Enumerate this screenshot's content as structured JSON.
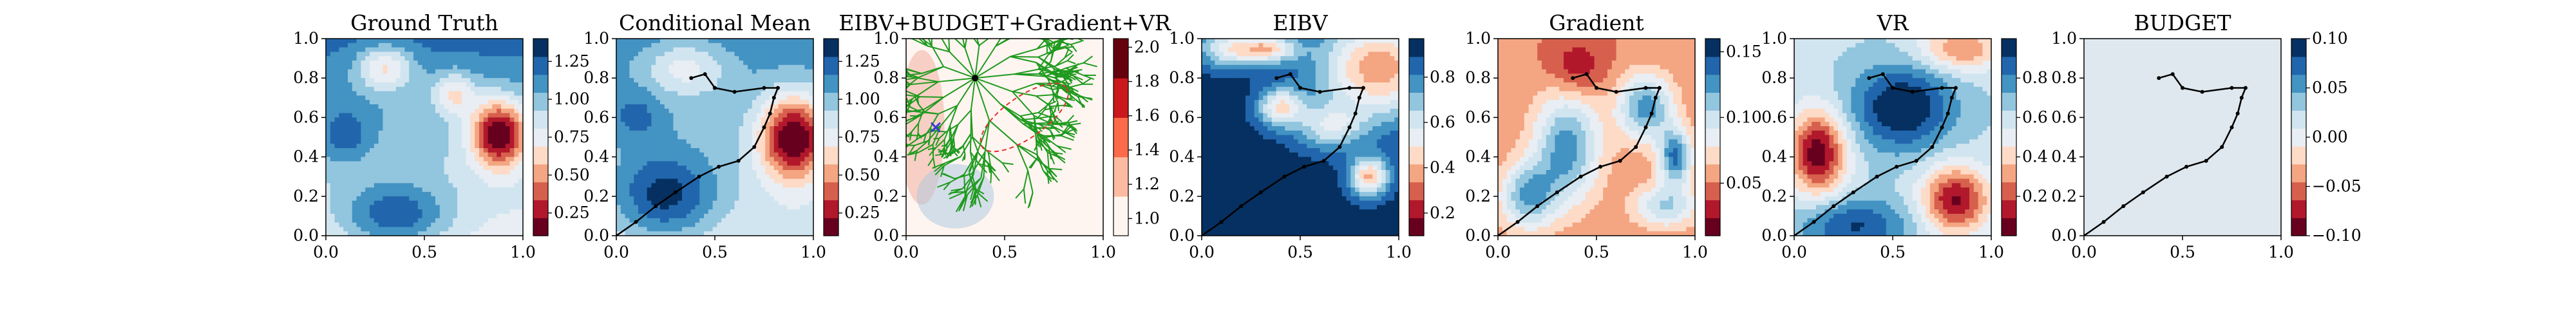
{
  "colors": {
    "rdbu": [
      "#67001f",
      "#b2182b",
      "#d6604d",
      "#f4a582",
      "#fddbc7",
      "#e8eef3",
      "#d1e5f0",
      "#92c5de",
      "#4393c3",
      "#2166ac",
      "#053061"
    ],
    "reds": [
      "#fff5f0",
      "#fcbba1",
      "#fb6a4a",
      "#cb181d",
      "#67000d"
    ],
    "tree": "#1f9a1f",
    "path": "#000000",
    "budget_ellipse": "#e03030",
    "bg_budget": "#dfe8ef"
  },
  "chart_data": [
    {
      "type": "heatmap",
      "title": "Ground Truth",
      "xlim": [
        0,
        1
      ],
      "ylim": [
        0,
        1
      ],
      "xticks": [
        "0.0",
        "0.5",
        "1.0"
      ],
      "yticks": [
        "0.0",
        "0.2",
        "0.4",
        "0.6",
        "0.8",
        "1.0"
      ],
      "colormap": "RdBu",
      "colorbar": {
        "range": [
          0.1,
          1.4
        ],
        "ticks": [
          "0.25",
          "0.50",
          "0.75",
          "1.00",
          "1.25"
        ]
      }
    },
    {
      "type": "heatmap",
      "title": "Conditional Mean",
      "xlim": [
        0,
        1
      ],
      "ylim": [
        0,
        1
      ],
      "xticks": [
        "0.0",
        "0.5",
        "1.0"
      ],
      "yticks": [
        "0.0",
        "0.2",
        "0.4",
        "0.6",
        "0.8",
        "1.0"
      ],
      "colormap": "RdBu",
      "colorbar": {
        "range": [
          0.1,
          1.4
        ],
        "ticks": [
          "0.25",
          "0.50",
          "0.75",
          "1.00",
          "1.25"
        ]
      },
      "path": [
        [
          0.0,
          0.0
        ],
        [
          0.1,
          0.07
        ],
        [
          0.2,
          0.15
        ],
        [
          0.3,
          0.22
        ],
        [
          0.42,
          0.3
        ],
        [
          0.52,
          0.35
        ],
        [
          0.62,
          0.38
        ],
        [
          0.7,
          0.45
        ],
        [
          0.75,
          0.55
        ],
        [
          0.78,
          0.62
        ],
        [
          0.8,
          0.7
        ],
        [
          0.82,
          0.75
        ],
        [
          0.75,
          0.75
        ],
        [
          0.6,
          0.73
        ],
        [
          0.5,
          0.75
        ],
        [
          0.45,
          0.82
        ],
        [
          0.38,
          0.8
        ]
      ]
    },
    {
      "type": "heatmap",
      "title": "EIBV+BUDGET+Gradient+VR",
      "xlim": [
        0,
        1
      ],
      "ylim": [
        0,
        1
      ],
      "xticks": [
        "0.0",
        "0.5",
        "1.0"
      ],
      "yticks": [
        "0.0",
        "0.2",
        "0.4",
        "0.6",
        "0.8",
        "1.0"
      ],
      "colormap": "Reds",
      "colorbar": {
        "range": [
          0.9,
          2.05
        ],
        "ticks": [
          "1.0",
          "1.2",
          "1.4",
          "1.6",
          "1.8",
          "2.0"
        ]
      },
      "tree_root": [
        0.35,
        0.8
      ],
      "current": [
        0.15,
        0.55
      ]
    },
    {
      "type": "heatmap",
      "title": "EIBV",
      "xlim": [
        0,
        1
      ],
      "ylim": [
        0,
        1
      ],
      "xticks": [
        "0.0",
        "0.5",
        "1.0"
      ],
      "yticks": [
        "0.0",
        "0.2",
        "0.4",
        "0.6",
        "0.8",
        "1.0"
      ],
      "colormap": "RdBu",
      "colorbar": {
        "range": [
          0.1,
          0.97
        ],
        "ticks": [
          "0.2",
          "0.4",
          "0.6",
          "0.8"
        ]
      },
      "path": [
        [
          0.0,
          0.0
        ],
        [
          0.1,
          0.07
        ],
        [
          0.2,
          0.15
        ],
        [
          0.3,
          0.22
        ],
        [
          0.42,
          0.3
        ],
        [
          0.52,
          0.35
        ],
        [
          0.62,
          0.38
        ],
        [
          0.7,
          0.45
        ],
        [
          0.75,
          0.55
        ],
        [
          0.78,
          0.62
        ],
        [
          0.8,
          0.7
        ],
        [
          0.82,
          0.75
        ],
        [
          0.75,
          0.75
        ],
        [
          0.6,
          0.73
        ],
        [
          0.5,
          0.75
        ],
        [
          0.45,
          0.82
        ],
        [
          0.38,
          0.8
        ]
      ]
    },
    {
      "type": "heatmap",
      "title": "Gradient",
      "xlim": [
        0,
        1
      ],
      "ylim": [
        0,
        1
      ],
      "xticks": [
        "0.0",
        "0.5",
        "1.0"
      ],
      "yticks": [
        "0.0",
        "0.2",
        "0.4",
        "0.6",
        "0.8",
        "1.0"
      ],
      "colormap": "RdBu",
      "colorbar": {
        "range": [
          0.01,
          0.16
        ],
        "ticks": [
          "0.05",
          "0.10",
          "0.15"
        ]
      },
      "path": [
        [
          0.0,
          0.0
        ],
        [
          0.1,
          0.07
        ],
        [
          0.2,
          0.15
        ],
        [
          0.3,
          0.22
        ],
        [
          0.42,
          0.3
        ],
        [
          0.52,
          0.35
        ],
        [
          0.62,
          0.38
        ],
        [
          0.7,
          0.45
        ],
        [
          0.75,
          0.55
        ],
        [
          0.78,
          0.62
        ],
        [
          0.8,
          0.7
        ],
        [
          0.82,
          0.75
        ],
        [
          0.75,
          0.75
        ],
        [
          0.6,
          0.73
        ],
        [
          0.5,
          0.75
        ],
        [
          0.45,
          0.82
        ],
        [
          0.38,
          0.8
        ]
      ]
    },
    {
      "type": "heatmap",
      "title": "VR",
      "xlim": [
        0,
        1
      ],
      "ylim": [
        0,
        1
      ],
      "xticks": [
        "0.0",
        "0.5",
        "1.0"
      ],
      "yticks": [
        "0.0",
        "0.2",
        "0.4",
        "0.6",
        "0.8",
        "1.0"
      ],
      "colormap": "RdBu",
      "colorbar": {
        "range": [
          0.0,
          1.0
        ],
        "ticks": [
          "0.2",
          "0.4",
          "0.6",
          "0.8"
        ]
      },
      "path": [
        [
          0.0,
          0.0
        ],
        [
          0.1,
          0.07
        ],
        [
          0.2,
          0.15
        ],
        [
          0.3,
          0.22
        ],
        [
          0.42,
          0.3
        ],
        [
          0.52,
          0.35
        ],
        [
          0.62,
          0.38
        ],
        [
          0.7,
          0.45
        ],
        [
          0.75,
          0.55
        ],
        [
          0.78,
          0.62
        ],
        [
          0.8,
          0.7
        ],
        [
          0.82,
          0.75
        ],
        [
          0.75,
          0.75
        ],
        [
          0.6,
          0.73
        ],
        [
          0.5,
          0.75
        ],
        [
          0.45,
          0.82
        ],
        [
          0.38,
          0.8
        ]
      ]
    },
    {
      "type": "heatmap",
      "title": "BUDGET",
      "xlim": [
        0,
        1
      ],
      "ylim": [
        0,
        1
      ],
      "xticks": [
        "0.0",
        "0.5",
        "1.0"
      ],
      "yticks": [
        "0.0",
        "0.2",
        "0.4",
        "0.6",
        "0.8",
        "1.0"
      ],
      "colormap": "RdBu",
      "colorbar": {
        "range": [
          -0.1,
          0.1
        ],
        "ticks": [
          "−0.10",
          "−0.05",
          "0.00",
          "0.05",
          "0.10"
        ]
      },
      "path": [
        [
          0.0,
          0.0
        ],
        [
          0.1,
          0.07
        ],
        [
          0.2,
          0.15
        ],
        [
          0.3,
          0.22
        ],
        [
          0.42,
          0.3
        ],
        [
          0.52,
          0.35
        ],
        [
          0.62,
          0.38
        ],
        [
          0.7,
          0.45
        ],
        [
          0.75,
          0.55
        ],
        [
          0.78,
          0.62
        ],
        [
          0.8,
          0.7
        ],
        [
          0.82,
          0.75
        ],
        [
          0.75,
          0.75
        ],
        [
          0.6,
          0.73
        ],
        [
          0.5,
          0.75
        ],
        [
          0.45,
          0.82
        ],
        [
          0.38,
          0.8
        ]
      ]
    }
  ]
}
